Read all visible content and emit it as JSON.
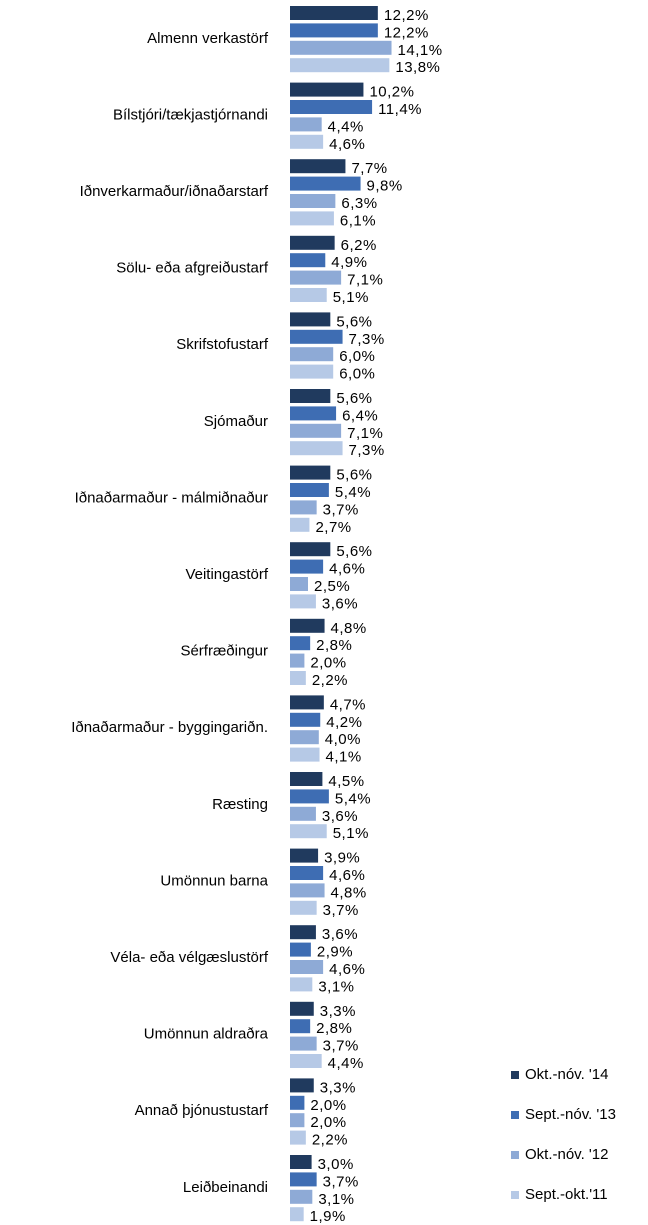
{
  "chart_data": {
    "type": "bar",
    "orientation": "horizontal",
    "categories": [
      "Almenn verkastörf",
      "Bílstjóri/tækjastjórnandi",
      "Iðnverkarmaður/iðnaðarstarf",
      "Sölu- eða afgreiðustarf",
      "Skrifstofustarf",
      "Sjómaður",
      "Iðnaðarmaður - málmiðnaður",
      "Veitingastörf",
      "Sérfræðingur",
      "Iðnaðarmaður - byggingariðn.",
      "Ræsting",
      "Umönnun barna",
      "Véla- eða vélgæslustörf",
      "Umönnun aldraðra",
      "Annað þjónustustarf",
      "Leiðbeinandi"
    ],
    "series": [
      {
        "name": "Okt.-nóv. '14",
        "color": "#203a5e",
        "values": [
          12.2,
          10.2,
          7.7,
          6.2,
          5.6,
          5.6,
          5.6,
          5.6,
          4.8,
          4.7,
          4.5,
          3.9,
          3.6,
          3.3,
          3.3,
          3.0
        ],
        "value_labels": [
          "12,2%",
          "10,2%",
          "7,7%",
          "6,2%",
          "5,6%",
          "5,6%",
          "5,6%",
          "5,6%",
          "4,8%",
          "4,7%",
          "4,5%",
          "3,9%",
          "3,6%",
          "3,3%",
          "3,3%",
          "3,0%"
        ]
      },
      {
        "name": "Sept.-nóv. '13",
        "color": "#3e6db3",
        "values": [
          12.2,
          11.4,
          9.8,
          4.9,
          7.3,
          6.4,
          5.4,
          4.6,
          2.8,
          4.2,
          5.4,
          4.6,
          2.9,
          2.8,
          2.0,
          3.7
        ],
        "value_labels": [
          "12,2%",
          "11,4%",
          "9,8%",
          "4,9%",
          "7,3%",
          "6,4%",
          "5,4%",
          "4,6%",
          "2,8%",
          "4,2%",
          "5,4%",
          "4,6%",
          "2,9%",
          "2,8%",
          "2,0%",
          "3,7%"
        ]
      },
      {
        "name": "Okt.-nóv. '12",
        "color": "#8eaad6",
        "values": [
          14.1,
          4.4,
          6.3,
          7.1,
          6.0,
          7.1,
          3.7,
          2.5,
          2.0,
          4.0,
          3.6,
          4.8,
          4.6,
          3.7,
          2.0,
          3.1
        ],
        "value_labels": [
          "14,1%",
          "4,4%",
          "6,3%",
          "7,1%",
          "6,0%",
          "7,1%",
          "3,7%",
          "2,5%",
          "2,0%",
          "4,0%",
          "3,6%",
          "4,8%",
          "4,6%",
          "3,7%",
          "2,0%",
          "3,1%"
        ]
      },
      {
        "name": "Sept.-okt.'11",
        "color": "#b6c9e6",
        "values": [
          13.8,
          4.6,
          6.1,
          5.1,
          6.0,
          7.3,
          2.7,
          3.6,
          2.2,
          4.1,
          5.1,
          3.7,
          3.1,
          4.4,
          2.2,
          1.9
        ],
        "value_labels": [
          "13,8%",
          "4,6%",
          "6,1%",
          "5,1%",
          "6,0%",
          "7,3%",
          "2,7%",
          "3,6%",
          "2,2%",
          "4,1%",
          "5,1%",
          "3,7%",
          "3,1%",
          "4,4%",
          "2,2%",
          "1,9%"
        ]
      }
    ],
    "xlim": [
      0,
      15
    ],
    "legend": "lower right"
  }
}
